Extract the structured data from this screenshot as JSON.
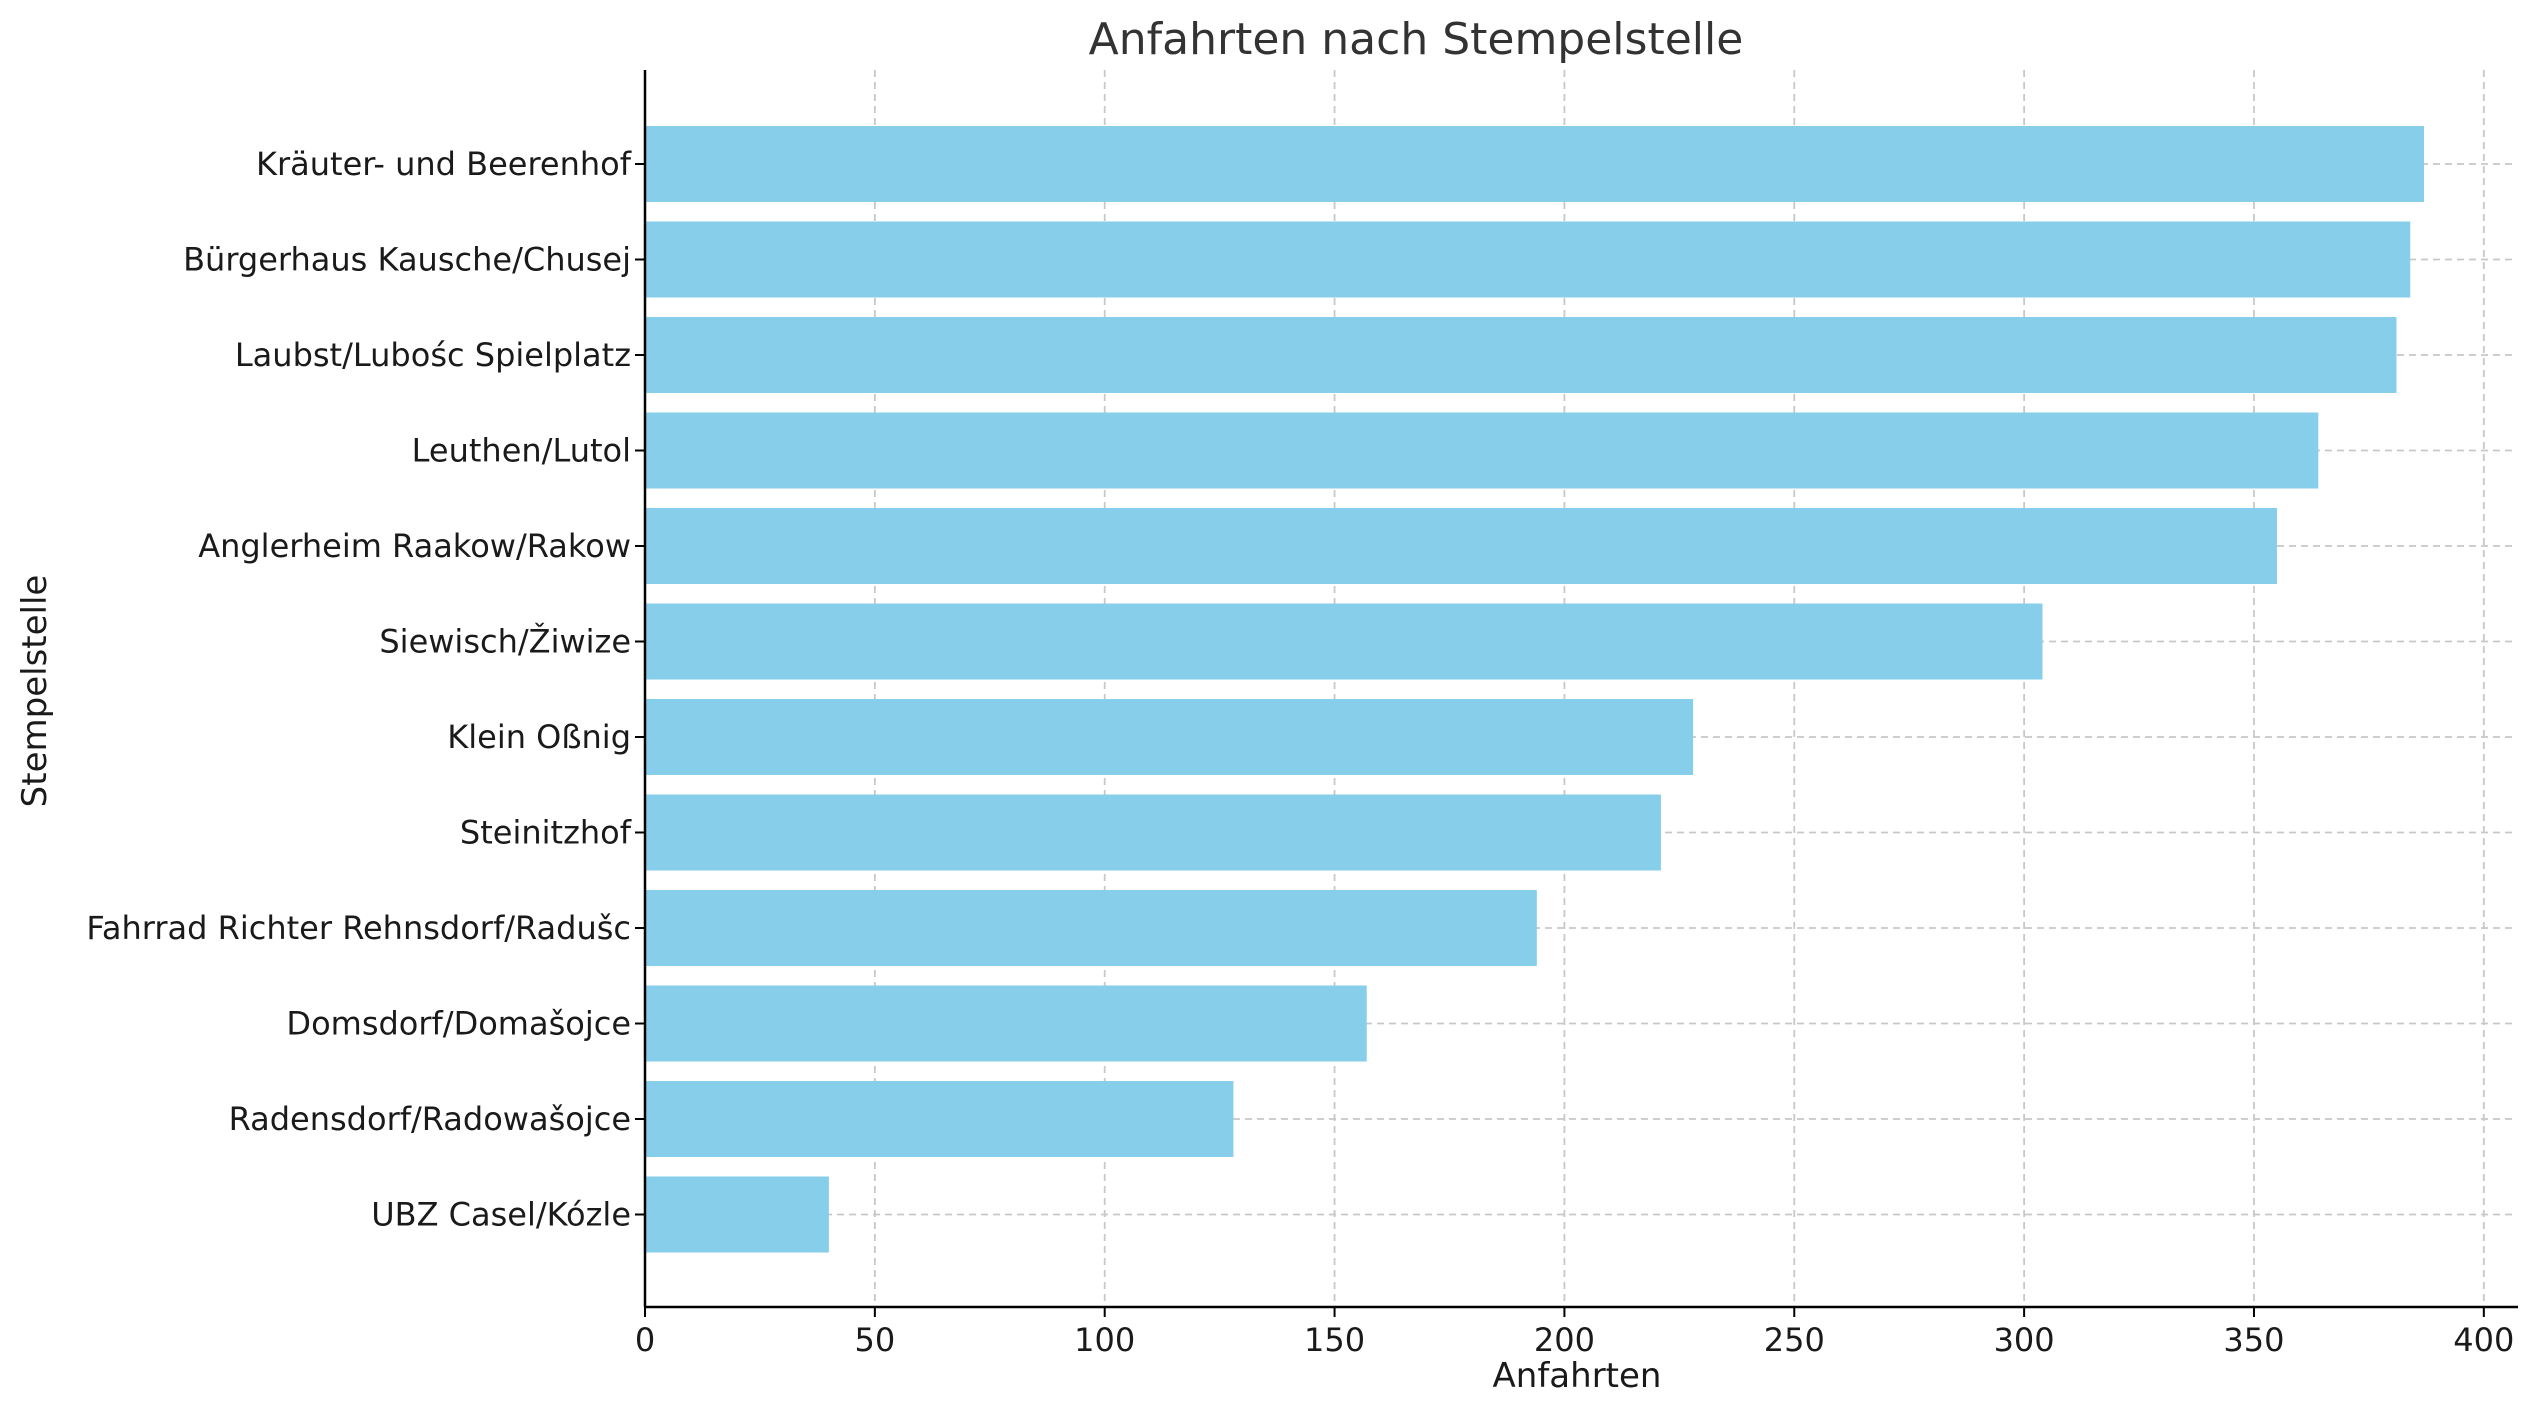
{
  "chart_data": {
    "type": "bar",
    "orientation": "horizontal",
    "title": "Anfahrten nach Stempelstelle",
    "xlabel": "Anfahrten",
    "ylabel": "Stempelstelle",
    "xlim": [
      0,
      407
    ],
    "xticks": [
      0,
      50,
      100,
      150,
      200,
      250,
      300,
      350,
      400
    ],
    "grid": true,
    "bar_color": "#87CEEB",
    "categories": [
      "Kräuter- und Beerenhof",
      "Bürgerhaus Kausche/Chusej",
      "Laubst/Lubośc Spielplatz",
      "Leuthen/Lutol",
      "Anglerheim Raakow/Rakow",
      "Siewisch/Žiwize",
      "Klein Oßnig",
      "Steinitzhof",
      "Fahrrad Richter Rehnsdorf/Radušc",
      "Domsdorf/Domašojce",
      "Radensdorf/Radowašojce",
      "UBZ Casel/Kózle"
    ],
    "values": [
      387,
      384,
      381,
      364,
      355,
      304,
      228,
      221,
      194,
      157,
      128,
      40
    ]
  }
}
